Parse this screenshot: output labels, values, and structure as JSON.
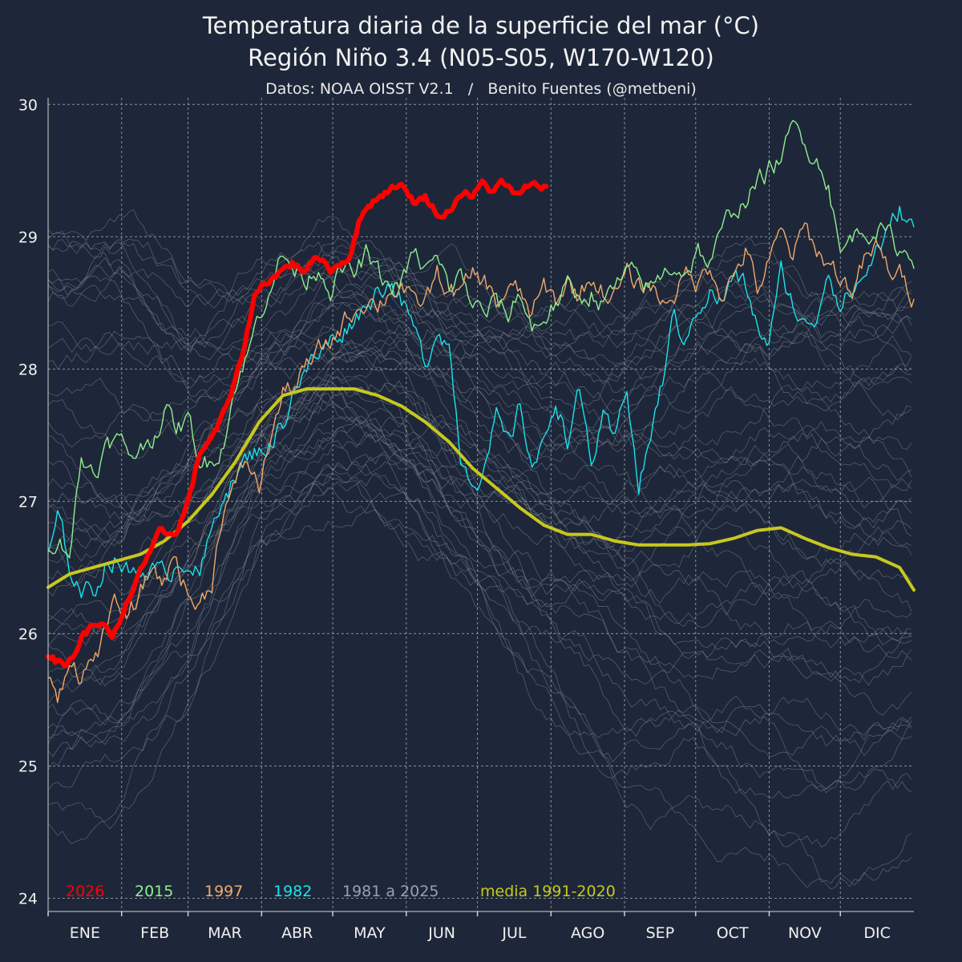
{
  "chart_data": {
    "type": "line",
    "title": "Temperatura diaria de la superficie del mar (°C)",
    "subtitle": "Región Niño 3.4 (N05-S05, W170-W120)",
    "source": "Datos: NOAA OISST V2.1   /   Benito Fuentes (@metbeni)",
    "xlabel": "",
    "ylabel": "",
    "xlim": [
      1,
      366
    ],
    "ylim": [
      23.9,
      30.05
    ],
    "y_ticks": [
      24,
      25,
      26,
      27,
      28,
      29,
      30
    ],
    "x_tick_days": [
      1,
      32,
      60,
      91,
      121,
      152,
      182,
      213,
      244,
      274,
      305,
      335
    ],
    "months": [
      "ENE",
      "FEB",
      "MAR",
      "ABR",
      "MAY",
      "JUN",
      "JUL",
      "AGO",
      "SEP",
      "OCT",
      "NOV",
      "DIC"
    ],
    "grid": true,
    "legend_position": "bottom-left",
    "background_color": "#1e2739",
    "series": [
      {
        "name": "1981 a 2025",
        "color": "#8c94a3",
        "description_values": "ensemble of grey lines for each year 1981-2025",
        "x": [
          1,
          30,
          60,
          90,
          120,
          150,
          180,
          210,
          240,
          270,
          300,
          330,
          366
        ],
        "bands": [
          [
            24.6,
            24.8,
            25.5,
            26.6,
            27.0,
            26.8,
            26.2,
            25.3,
            24.6,
            24.7,
            24.4,
            24.1,
            24.5
          ],
          [
            25.5,
            25.6,
            26.2,
            27.1,
            27.4,
            27.2,
            26.8,
            26.3,
            26.0,
            25.8,
            25.6,
            25.5,
            25.6
          ],
          [
            26.4,
            26.4,
            26.9,
            27.5,
            27.8,
            27.6,
            27.2,
            26.8,
            26.6,
            26.6,
            26.6,
            26.5,
            26.3
          ],
          [
            27.2,
            27.0,
            27.3,
            27.8,
            28.1,
            28.0,
            27.7,
            27.3,
            27.2,
            27.3,
            27.4,
            27.4,
            27.3
          ],
          [
            28.6,
            28.5,
            28.1,
            28.3,
            28.6,
            28.5,
            28.3,
            28.0,
            28.0,
            28.2,
            28.3,
            28.2,
            28.1
          ],
          [
            29.1,
            29.0,
            28.6,
            28.8,
            28.9,
            28.8,
            28.5,
            28.4,
            28.4,
            28.6,
            28.7,
            28.6,
            28.5
          ]
        ]
      },
      {
        "name": "1982",
        "color": "#19e3ea",
        "x": [
          1,
          5,
          10,
          15,
          20,
          25,
          30,
          35,
          40,
          45,
          50,
          55,
          60,
          65,
          70,
          75,
          80,
          85,
          90,
          95,
          100,
          105,
          110,
          115,
          120,
          125,
          130,
          135,
          140,
          145,
          150,
          155,
          160,
          165,
          170,
          175,
          180,
          185,
          190,
          195,
          200,
          205,
          210,
          215,
          220,
          225,
          230,
          235,
          240,
          245,
          250,
          255,
          260,
          265,
          270,
          275,
          280,
          285,
          290,
          295,
          300,
          305,
          310,
          315,
          320,
          325,
          330,
          335,
          340,
          345,
          350,
          355,
          360,
          366
        ],
        "y": [
          26.6,
          26.85,
          26.5,
          26.35,
          26.3,
          26.55,
          26.6,
          26.45,
          26.5,
          26.5,
          26.4,
          26.55,
          26.6,
          26.45,
          26.75,
          27.1,
          27.2,
          27.3,
          27.4,
          27.45,
          27.6,
          27.9,
          28.0,
          28.1,
          28.2,
          28.3,
          28.4,
          28.5,
          28.6,
          28.7,
          28.5,
          28.3,
          28.0,
          28.35,
          28.2,
          27.35,
          27.2,
          27.25,
          27.6,
          27.4,
          27.7,
          27.3,
          27.4,
          27.8,
          27.5,
          27.8,
          27.3,
          27.6,
          27.4,
          27.9,
          27.1,
          27.5,
          27.9,
          28.4,
          28.2,
          28.5,
          28.6,
          28.5,
          28.7,
          28.6,
          28.3,
          28.2,
          28.7,
          28.5,
          28.3,
          28.4,
          28.8,
          28.5,
          28.6,
          28.7,
          28.9,
          29.0,
          29.2,
          29.05
        ]
      },
      {
        "name": "1997",
        "color": "#f2a86a",
        "x": [
          1,
          5,
          10,
          15,
          20,
          25,
          30,
          35,
          40,
          45,
          50,
          55,
          60,
          65,
          70,
          75,
          80,
          85,
          90,
          95,
          100,
          105,
          110,
          115,
          120,
          125,
          130,
          135,
          140,
          145,
          150,
          155,
          160,
          165,
          170,
          175,
          180,
          185,
          190,
          195,
          200,
          205,
          210,
          215,
          220,
          225,
          230,
          235,
          240,
          245,
          250,
          255,
          260,
          265,
          270,
          275,
          280,
          285,
          290,
          295,
          300,
          305,
          310,
          315,
          320,
          325,
          330,
          335,
          340,
          345,
          350,
          355,
          360,
          366
        ],
        "y": [
          25.7,
          25.45,
          25.85,
          25.7,
          25.8,
          26.0,
          26.2,
          26.1,
          26.3,
          26.5,
          26.4,
          26.6,
          26.3,
          26.2,
          26.4,
          27.0,
          27.1,
          27.3,
          27.1,
          27.5,
          27.8,
          27.9,
          28.0,
          28.1,
          28.2,
          28.35,
          28.45,
          28.55,
          28.5,
          28.6,
          28.65,
          28.45,
          28.5,
          28.7,
          28.6,
          28.55,
          28.7,
          28.65,
          28.5,
          28.6,
          28.55,
          28.4,
          28.6,
          28.5,
          28.65,
          28.55,
          28.7,
          28.6,
          28.55,
          28.7,
          28.6,
          28.65,
          28.5,
          28.6,
          28.7,
          28.65,
          28.8,
          28.6,
          28.7,
          28.9,
          28.6,
          28.8,
          29.0,
          28.85,
          29.05,
          28.9,
          28.8,
          28.7,
          28.6,
          28.8,
          28.9,
          28.75,
          28.7,
          28.55
        ]
      },
      {
        "name": "2015",
        "color": "#90ee90",
        "x": [
          1,
          5,
          10,
          15,
          20,
          25,
          30,
          35,
          40,
          45,
          50,
          55,
          60,
          65,
          70,
          75,
          80,
          85,
          90,
          95,
          100,
          105,
          110,
          115,
          120,
          125,
          130,
          135,
          140,
          145,
          150,
          155,
          160,
          165,
          170,
          175,
          180,
          185,
          190,
          195,
          200,
          205,
          210,
          215,
          220,
          225,
          230,
          235,
          240,
          245,
          250,
          255,
          260,
          265,
          270,
          275,
          280,
          285,
          290,
          295,
          300,
          305,
          310,
          315,
          320,
          325,
          330,
          335,
          340,
          345,
          350,
          355,
          360,
          366
        ],
        "y": [
          26.7,
          26.75,
          26.65,
          27.3,
          27.25,
          27.4,
          27.45,
          27.35,
          27.4,
          27.5,
          27.7,
          27.55,
          27.6,
          27.3,
          27.3,
          27.5,
          27.9,
          28.1,
          28.4,
          28.7,
          28.85,
          28.75,
          28.7,
          28.8,
          28.65,
          28.75,
          28.7,
          28.85,
          28.7,
          28.6,
          28.65,
          28.85,
          28.75,
          28.8,
          28.6,
          28.7,
          28.5,
          28.4,
          28.5,
          28.4,
          28.6,
          28.3,
          28.4,
          28.5,
          28.6,
          28.5,
          28.6,
          28.5,
          28.6,
          28.7,
          28.65,
          28.6,
          28.7,
          28.8,
          28.75,
          28.9,
          28.8,
          29.0,
          29.2,
          29.3,
          29.4,
          29.5,
          29.6,
          29.8,
          29.75,
          29.6,
          29.45,
          28.85,
          29.0,
          29.05,
          29.1,
          29.0,
          28.9,
          28.85
        ]
      },
      {
        "name": "media 1991-2020",
        "color": "#c8c81e",
        "x": [
          1,
          10,
          20,
          30,
          40,
          50,
          60,
          70,
          80,
          90,
          100,
          110,
          120,
          130,
          140,
          150,
          160,
          170,
          180,
          190,
          200,
          210,
          220,
          230,
          240,
          250,
          260,
          270,
          280,
          290,
          300,
          310,
          320,
          330,
          340,
          350,
          360,
          366
        ],
        "y": [
          26.35,
          26.45,
          26.5,
          26.55,
          26.6,
          26.7,
          26.85,
          27.05,
          27.3,
          27.6,
          27.8,
          27.85,
          27.85,
          27.85,
          27.8,
          27.72,
          27.6,
          27.45,
          27.25,
          27.1,
          26.95,
          26.82,
          26.75,
          26.75,
          26.7,
          26.67,
          26.67,
          26.67,
          26.68,
          26.72,
          26.78,
          26.8,
          26.72,
          26.65,
          26.6,
          26.58,
          26.5,
          26.33
        ]
      },
      {
        "name": "2026",
        "color": "#ff0000",
        "x": [
          1,
          4,
          8,
          12,
          16,
          20,
          24,
          28,
          32,
          36,
          40,
          44,
          48,
          52,
          56,
          60,
          64,
          68,
          72,
          76,
          80,
          84,
          88,
          92,
          96,
          100,
          104,
          108,
          112,
          116,
          120,
          124,
          128,
          132,
          136,
          140,
          144,
          148,
          152,
          156,
          160,
          164,
          168,
          172,
          176,
          180,
          184,
          188,
          192,
          196,
          200,
          204,
          208,
          211
        ],
        "y": [
          25.85,
          25.8,
          25.75,
          25.85,
          26.0,
          26.05,
          26.1,
          25.95,
          26.1,
          26.3,
          26.5,
          26.6,
          26.75,
          26.75,
          26.8,
          27.0,
          27.3,
          27.45,
          27.55,
          27.7,
          27.9,
          28.2,
          28.55,
          28.65,
          28.7,
          28.75,
          28.8,
          28.75,
          28.8,
          28.85,
          28.75,
          28.8,
          28.85,
          29.1,
          29.25,
          29.3,
          29.35,
          29.4,
          29.35,
          29.25,
          29.3,
          29.2,
          29.15,
          29.25,
          29.35,
          29.3,
          29.4,
          29.35,
          29.4,
          29.35,
          29.3,
          29.4,
          29.38,
          29.4
        ]
      }
    ]
  }
}
